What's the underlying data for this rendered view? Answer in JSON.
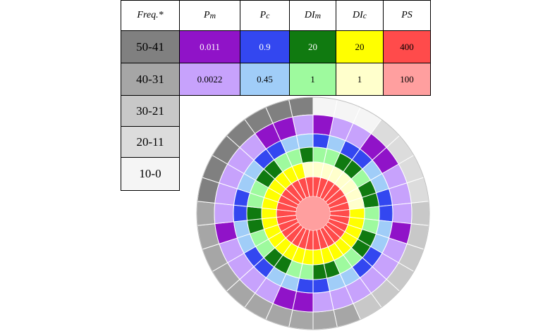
{
  "header": {
    "freq": "Freq.*",
    "pm": "P",
    "pm_sub": "m",
    "pc": "P",
    "pc_sub": "c",
    "dim": "DI",
    "dim_sub": "m",
    "dic": "DI",
    "dic_sub": "c",
    "ps": "PS"
  },
  "frequency_classes": [
    {
      "label": "50-41",
      "color": "#808080"
    },
    {
      "label": "40-31",
      "color": "#a6a6a6"
    },
    {
      "label": "30-21",
      "color": "#c8c8c8"
    },
    {
      "label": "20-11",
      "color": "#dcdcdc"
    },
    {
      "label": "10-0",
      "color": "#f5f5f5"
    }
  ],
  "rows": [
    {
      "pm": "0.011",
      "pc": "0.9",
      "dim": "20",
      "dic": "20",
      "ps": "400"
    },
    {
      "pm": "0.0022",
      "pc": "0.45",
      "dim": "1",
      "dic": "1",
      "ps": "100"
    }
  ],
  "colors": {
    "pm_high": "#9013c8",
    "pm_low": "#c7a2fc",
    "pc_high": "#3347f0",
    "pc_low": "#a0cdf8",
    "dim_high": "#107a10",
    "dim_low": "#9efa9e",
    "dic_high": "#ffff00",
    "dic_low": "#ffffcc",
    "ps_high": "#ff4b4b",
    "ps_low": "#ff9f9f"
  },
  "wheel": {
    "sectors": 30,
    "frequency_class_per_sector": [
      5,
      5,
      5,
      4,
      4,
      4,
      4,
      3,
      3,
      3,
      3,
      3,
      3,
      2,
      2,
      2,
      2,
      2,
      2,
      2,
      2,
      2,
      2,
      1,
      1,
      1,
      1,
      1,
      1,
      1
    ],
    "pm_high_sectors": [
      0,
      3,
      4,
      8,
      15,
      16,
      21,
      27,
      28
    ],
    "pc_high_sectors": [
      0,
      2,
      3,
      6,
      7,
      10,
      11,
      14,
      15,
      18,
      19,
      22,
      23,
      26,
      27
    ],
    "dim_high_sectors": [
      2,
      3,
      5,
      6,
      9,
      10,
      13,
      14,
      17,
      18,
      21,
      22,
      25,
      26,
      29
    ],
    "dic_high_sectors": [
      7,
      8,
      9,
      10,
      11,
      12,
      13,
      14,
      15,
      16,
      17,
      18,
      19,
      20,
      21,
      22,
      23,
      24,
      25,
      26,
      27,
      28
    ],
    "ps_high_sectors": [
      0,
      1,
      2,
      3,
      4,
      5,
      6,
      7,
      8,
      9,
      10,
      11,
      12,
      13,
      14,
      15,
      16,
      17,
      18,
      19,
      20,
      21,
      22,
      23,
      24,
      25,
      26,
      27,
      28,
      29
    ]
  }
}
